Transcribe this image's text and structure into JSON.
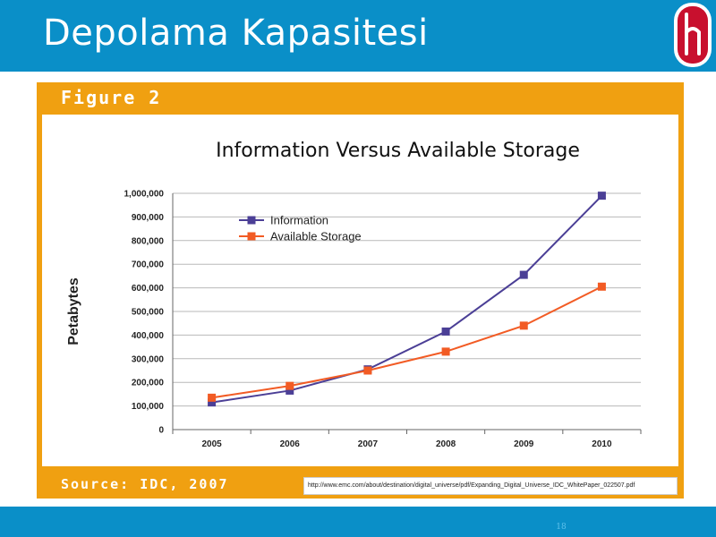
{
  "slide": {
    "title": "Depolama Kapasitesi",
    "page_number": "18",
    "logo_icon": "hacettepe-logo-icon"
  },
  "figure": {
    "label": "Figure 2",
    "source": "Source: IDC, 2007",
    "url": "http://www.emc.com/about/destination/digital_universe/pdf/Expanding_Digital_Universe_IDC_WhitePaper_022507.pdf"
  },
  "colors": {
    "header_bar": "#0a8fc8",
    "figure_frame": "#f0a011",
    "information": "#4b3f96",
    "available_storage": "#f25b24"
  },
  "chart_data": {
    "type": "line",
    "title": "Information Versus Available Storage",
    "xlabel": "",
    "ylabel": "Petabytes",
    "categories": [
      "2005",
      "2006",
      "2007",
      "2008",
      "2009",
      "2010"
    ],
    "ylim": [
      0,
      1000000
    ],
    "yticks": [
      "1,000,000",
      "900,000",
      "800,000",
      "700,000",
      "600,000",
      "500,000",
      "400,000",
      "300,000",
      "200,000",
      "100,000",
      "0"
    ],
    "grid": true,
    "legend_position": "top-left",
    "series": [
      {
        "name": "Information",
        "color": "#4b3f96",
        "marker": "square",
        "values": [
          115000,
          165000,
          255000,
          415000,
          655000,
          990000
        ]
      },
      {
        "name": "Available Storage",
        "color": "#f25b24",
        "marker": "square",
        "values": [
          135000,
          185000,
          250000,
          330000,
          440000,
          605000
        ]
      }
    ]
  }
}
